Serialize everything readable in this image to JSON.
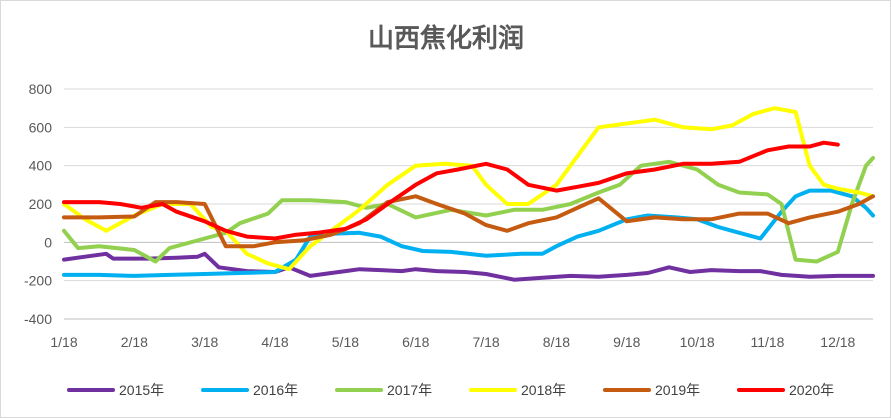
{
  "chart_data": {
    "type": "line",
    "title": "山西焦化利润",
    "xlabel": "",
    "ylabel": "",
    "x_tick_labels": [
      "1/18",
      "2/18",
      "3/18",
      "4/18",
      "5/18",
      "6/18",
      "7/18",
      "8/18",
      "9/18",
      "10/18",
      "11/18",
      "12/18"
    ],
    "y_tick_labels": [
      "800",
      "600",
      "400",
      "200",
      "0",
      "-200",
      "-400"
    ],
    "y_tick_values": [
      800,
      600,
      400,
      200,
      0,
      -200,
      -400
    ],
    "ylim": [
      -400,
      800
    ],
    "xlim": [
      0,
      11.5
    ],
    "grid": "horizontal",
    "legend_position": "bottom",
    "negative_tick_color": "#ff0000",
    "series": [
      {
        "name": "2015年",
        "color": "#7030a0",
        "points": [
          [
            0,
            -90
          ],
          [
            0.3,
            -75
          ],
          [
            0.6,
            -60
          ],
          [
            0.7,
            -85
          ],
          [
            1.2,
            -85
          ],
          [
            1.6,
            -80
          ],
          [
            1.9,
            -75
          ],
          [
            2.0,
            -60
          ],
          [
            2.2,
            -130
          ],
          [
            2.6,
            -150
          ],
          [
            3.0,
            -155
          ],
          [
            3.2,
            -130
          ],
          [
            3.5,
            -175
          ],
          [
            3.8,
            -160
          ],
          [
            4.0,
            -150
          ],
          [
            4.2,
            -140
          ],
          [
            4.5,
            -145
          ],
          [
            4.8,
            -150
          ],
          [
            5.0,
            -140
          ],
          [
            5.3,
            -150
          ],
          [
            5.7,
            -155
          ],
          [
            6.0,
            -165
          ],
          [
            6.4,
            -195
          ],
          [
            6.8,
            -185
          ],
          [
            7.2,
            -175
          ],
          [
            7.6,
            -180
          ],
          [
            8.0,
            -170
          ],
          [
            8.3,
            -160
          ],
          [
            8.6,
            -130
          ],
          [
            8.9,
            -155
          ],
          [
            9.2,
            -145
          ],
          [
            9.6,
            -150
          ],
          [
            9.9,
            -150
          ],
          [
            10.2,
            -170
          ],
          [
            10.6,
            -180
          ],
          [
            11.0,
            -175
          ],
          [
            11.5,
            -175
          ]
        ]
      },
      {
        "name": "2016年",
        "color": "#00b0f0",
        "points": [
          [
            0,
            -170
          ],
          [
            0.5,
            -170
          ],
          [
            1.0,
            -175
          ],
          [
            1.5,
            -170
          ],
          [
            2.0,
            -165
          ],
          [
            2.5,
            -160
          ],
          [
            3.0,
            -155
          ],
          [
            3.3,
            -90
          ],
          [
            3.5,
            30
          ],
          [
            3.8,
            45
          ],
          [
            4.2,
            50
          ],
          [
            4.5,
            30
          ],
          [
            4.8,
            -20
          ],
          [
            5.1,
            -45
          ],
          [
            5.5,
            -50
          ],
          [
            6.0,
            -70
          ],
          [
            6.5,
            -60
          ],
          [
            6.8,
            -60
          ],
          [
            7.0,
            -20
          ],
          [
            7.3,
            30
          ],
          [
            7.6,
            60
          ],
          [
            8.0,
            120
          ],
          [
            8.3,
            140
          ],
          [
            8.7,
            130
          ],
          [
            9.0,
            120
          ],
          [
            9.3,
            80
          ],
          [
            9.6,
            50
          ],
          [
            9.9,
            20
          ],
          [
            10.2,
            160
          ],
          [
            10.4,
            240
          ],
          [
            10.6,
            270
          ],
          [
            10.9,
            270
          ],
          [
            11.2,
            240
          ],
          [
            11.4,
            180
          ],
          [
            11.5,
            140
          ]
        ]
      },
      {
        "name": "2017年",
        "color": "#92d050",
        "points": [
          [
            0,
            60
          ],
          [
            0.2,
            -30
          ],
          [
            0.5,
            -20
          ],
          [
            1.0,
            -40
          ],
          [
            1.3,
            -100
          ],
          [
            1.5,
            -30
          ],
          [
            2.0,
            20
          ],
          [
            2.3,
            50
          ],
          [
            2.5,
            100
          ],
          [
            2.9,
            150
          ],
          [
            3.1,
            220
          ],
          [
            3.5,
            220
          ],
          [
            4.0,
            210
          ],
          [
            4.3,
            180
          ],
          [
            4.6,
            200
          ],
          [
            5.0,
            130
          ],
          [
            5.5,
            170
          ],
          [
            6.0,
            140
          ],
          [
            6.4,
            170
          ],
          [
            6.8,
            170
          ],
          [
            7.2,
            200
          ],
          [
            7.6,
            260
          ],
          [
            7.9,
            300
          ],
          [
            8.2,
            400
          ],
          [
            8.6,
            420
          ],
          [
            9.0,
            380
          ],
          [
            9.3,
            300
          ],
          [
            9.6,
            260
          ],
          [
            10.0,
            250
          ],
          [
            10.2,
            200
          ],
          [
            10.4,
            -90
          ],
          [
            10.7,
            -100
          ],
          [
            11.0,
            -50
          ],
          [
            11.2,
            200
          ],
          [
            11.4,
            400
          ],
          [
            11.5,
            440
          ]
        ]
      },
      {
        "name": "2018年",
        "color": "#ffff00",
        "points": [
          [
            0,
            200
          ],
          [
            0.3,
            120
          ],
          [
            0.6,
            60
          ],
          [
            1.0,
            140
          ],
          [
            1.4,
            200
          ],
          [
            1.8,
            200
          ],
          [
            2.1,
            80
          ],
          [
            2.3,
            60
          ],
          [
            2.6,
            -60
          ],
          [
            2.9,
            -110
          ],
          [
            3.2,
            -140
          ],
          [
            3.5,
            -20
          ],
          [
            3.8,
            60
          ],
          [
            4.2,
            170
          ],
          [
            4.6,
            300
          ],
          [
            5.0,
            400
          ],
          [
            5.4,
            410
          ],
          [
            5.8,
            400
          ],
          [
            6.0,
            300
          ],
          [
            6.3,
            200
          ],
          [
            6.6,
            200
          ],
          [
            7.0,
            300
          ],
          [
            7.3,
            450
          ],
          [
            7.6,
            600
          ],
          [
            8.0,
            620
          ],
          [
            8.4,
            640
          ],
          [
            8.8,
            600
          ],
          [
            9.2,
            590
          ],
          [
            9.5,
            610
          ],
          [
            9.8,
            670
          ],
          [
            10.1,
            700
          ],
          [
            10.4,
            680
          ],
          [
            10.6,
            400
          ],
          [
            10.8,
            300
          ],
          [
            11.0,
            280
          ],
          [
            11.3,
            260
          ],
          [
            11.5,
            240
          ]
        ]
      },
      {
        "name": "2019年",
        "color": "#c55a11",
        "points": [
          [
            0,
            130
          ],
          [
            0.5,
            130
          ],
          [
            1.0,
            135
          ],
          [
            1.3,
            210
          ],
          [
            1.6,
            210
          ],
          [
            2.0,
            200
          ],
          [
            2.3,
            -20
          ],
          [
            2.7,
            -20
          ],
          [
            3.0,
            0
          ],
          [
            3.4,
            10
          ],
          [
            3.8,
            40
          ],
          [
            4.2,
            100
          ],
          [
            4.6,
            210
          ],
          [
            5.0,
            240
          ],
          [
            5.3,
            200
          ],
          [
            5.7,
            150
          ],
          [
            6.0,
            90
          ],
          [
            6.3,
            60
          ],
          [
            6.6,
            100
          ],
          [
            7.0,
            130
          ],
          [
            7.3,
            180
          ],
          [
            7.6,
            230
          ],
          [
            8.0,
            110
          ],
          [
            8.4,
            130
          ],
          [
            8.8,
            120
          ],
          [
            9.2,
            120
          ],
          [
            9.6,
            150
          ],
          [
            10.0,
            150
          ],
          [
            10.3,
            100
          ],
          [
            10.6,
            130
          ],
          [
            11.0,
            160
          ],
          [
            11.3,
            200
          ],
          [
            11.5,
            240
          ]
        ]
      },
      {
        "name": "2020年",
        "color": "#ff0000",
        "points": [
          [
            0,
            210
          ],
          [
            0.5,
            210
          ],
          [
            0.8,
            200
          ],
          [
            1.1,
            180
          ],
          [
            1.4,
            200
          ],
          [
            1.6,
            160
          ],
          [
            2.0,
            110
          ],
          [
            2.3,
            60
          ],
          [
            2.6,
            30
          ],
          [
            3.0,
            20
          ],
          [
            3.3,
            40
          ],
          [
            3.6,
            50
          ],
          [
            4.0,
            70
          ],
          [
            4.3,
            120
          ],
          [
            4.6,
            200
          ],
          [
            5.0,
            300
          ],
          [
            5.3,
            360
          ],
          [
            5.6,
            380
          ],
          [
            6.0,
            410
          ],
          [
            6.3,
            380
          ],
          [
            6.6,
            300
          ],
          [
            7.0,
            270
          ],
          [
            7.3,
            290
          ],
          [
            7.6,
            310
          ],
          [
            8.0,
            360
          ],
          [
            8.4,
            380
          ],
          [
            8.8,
            410
          ],
          [
            9.2,
            410
          ],
          [
            9.6,
            420
          ],
          [
            10.0,
            480
          ],
          [
            10.3,
            500
          ],
          [
            10.6,
            500
          ],
          [
            10.8,
            520
          ],
          [
            11.0,
            510
          ]
        ]
      }
    ]
  }
}
